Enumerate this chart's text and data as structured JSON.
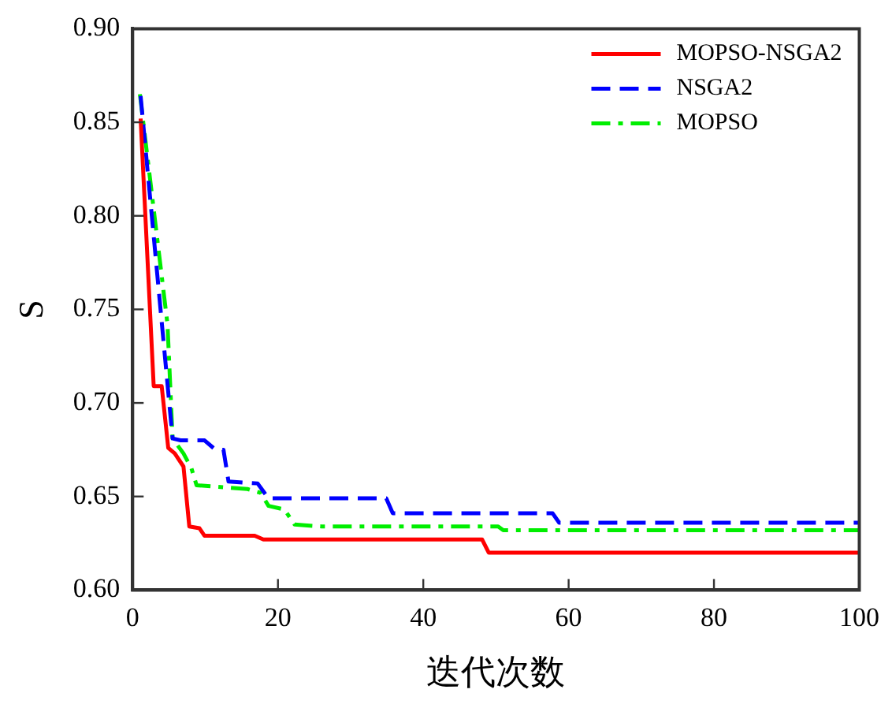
{
  "chart_data": {
    "type": "line",
    "xlabel": "迭代次数",
    "ylabel": "S",
    "xlim": [
      0,
      100
    ],
    "xticks": [
      0,
      20,
      40,
      60,
      80,
      100
    ],
    "ylim": [
      0.6,
      0.9
    ],
    "yticks": [
      {
        "value": 0.6,
        "label": "0.60"
      },
      0.65,
      {
        "value": 0.7,
        "label": "0.70"
      },
      0.75,
      {
        "value": 0.8,
        "label": "0.80"
      },
      0.85,
      {
        "value": 0.9,
        "label": "0.90"
      }
    ],
    "grid": false,
    "legend": "top right",
    "marker": "none",
    "series": [
      {
        "name": "MOPSO-NSGA2",
        "color": "#ff0000",
        "line_style": "solid",
        "x": [
          1.1,
          2.9,
          4,
          4.9,
          5.8,
          7,
          7.8,
          9.2,
          9.9,
          16.8,
          18,
          48.1,
          49,
          100
        ],
        "values": [
          0.852,
          0.709,
          0.709,
          0.676,
          0.673,
          0.666,
          0.634,
          0.633,
          0.629,
          0.629,
          0.627,
          0.627,
          0.62,
          0.62
        ]
      },
      {
        "name": "NSGA2",
        "color": "#0000ff",
        "line_style": "dashed",
        "x": [
          1.1,
          5.5,
          6.6,
          9.9,
          11.4,
          12.5,
          13.2,
          17.2,
          18.7,
          34.9,
          35.8,
          57.8,
          58.7,
          100
        ],
        "values": [
          0.864,
          0.681,
          0.68,
          0.68,
          0.675,
          0.675,
          0.658,
          0.657,
          0.649,
          0.649,
          0.641,
          0.641,
          0.636,
          0.636
        ]
      },
      {
        "name": "MOPSO",
        "color": "#00ee00",
        "line_style": "dashdot",
        "x": [
          1,
          4.8,
          5.5,
          7,
          8.1,
          8.8,
          15.8,
          17.6,
          18.7,
          20.9,
          22.3,
          26,
          50.3,
          51,
          100
        ],
        "values": [
          0.865,
          0.742,
          0.681,
          0.673,
          0.665,
          0.656,
          0.654,
          0.652,
          0.645,
          0.643,
          0.635,
          0.634,
          0.634,
          0.632,
          0.632
        ]
      }
    ]
  }
}
